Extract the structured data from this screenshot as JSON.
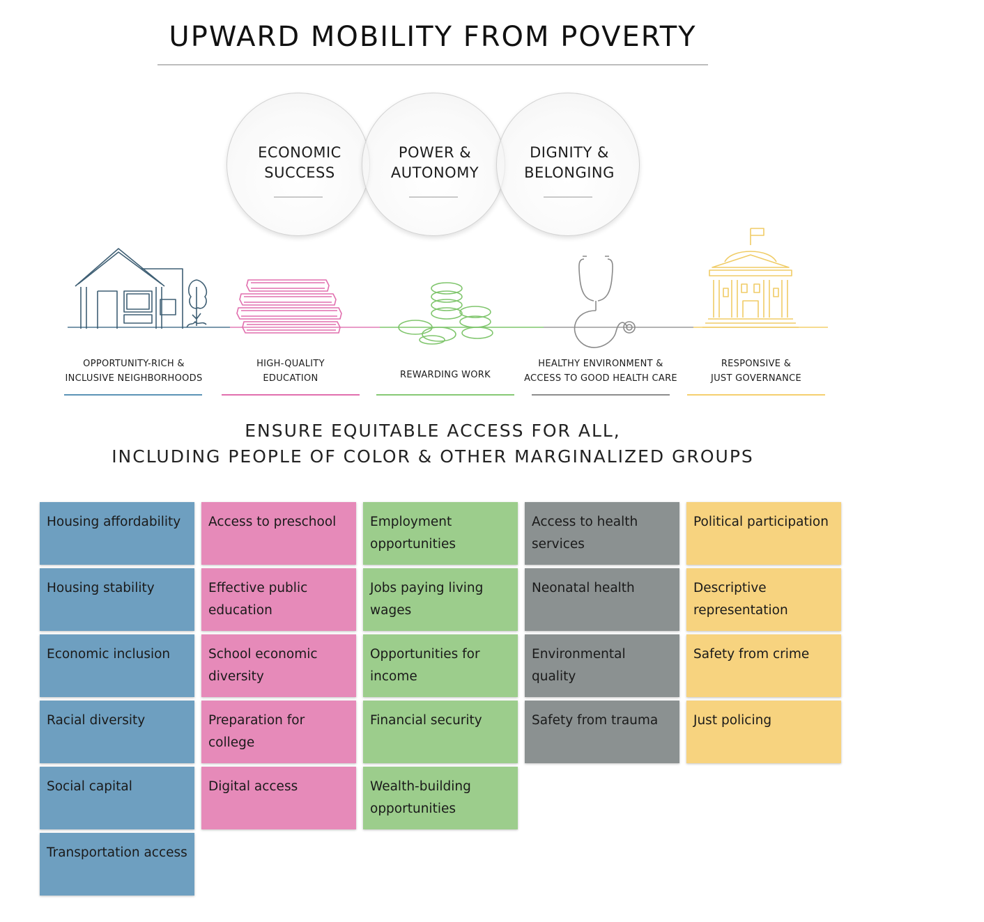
{
  "title": "UPWARD MOBILITY FROM POVERTY",
  "circles": [
    {
      "label": "ECONOMIC SUCCESS"
    },
    {
      "label": "POWER & AUTONOMY"
    },
    {
      "label": "DIGNITY & BELONGING"
    }
  ],
  "pillars": [
    {
      "label_line1": "OPPORTUNITY-RICH &",
      "label_line2": "INCLUSIVE NEIGHBORHOODS",
      "color": "#5b93b6",
      "icon": "house-icon"
    },
    {
      "label_line1": "HIGH-QUALITY",
      "label_line2": "EDUCATION",
      "color": "#e16fae",
      "icon": "books-icon"
    },
    {
      "label_line1": "REWARDING WORK",
      "label_line2": "",
      "color": "#86c874",
      "icon": "coins-icon"
    },
    {
      "label_line1": "HEALTHY ENVIRONMENT &",
      "label_line2": "ACCESS TO GOOD HEALTH CARE",
      "color": "#8c8c8c",
      "icon": "stethoscope-icon"
    },
    {
      "label_line1": "RESPONSIVE &",
      "label_line2": "JUST GOVERNANCE",
      "color": "#f5cf6e",
      "icon": "capitol-icon"
    }
  ],
  "equity_line1": "ENSURE EQUITABLE ACCESS FOR ALL,",
  "equity_line2": "INCLUDING PEOPLE OF COLOR & OTHER MARGINALIZED GROUPS",
  "columns": [
    {
      "color": "#6e9fc0",
      "items": [
        "Housing affordability",
        "Housing stability",
        "Economic inclusion",
        "Racial diversity",
        "Social capital",
        "Transportation access"
      ]
    },
    {
      "color": "#e68ab9",
      "items": [
        "Access to preschool",
        "Effective public education",
        "School economic diversity",
        "Preparation for college",
        "Digital access"
      ]
    },
    {
      "color": "#9ccd8c",
      "items": [
        "Employment opportunities",
        "Jobs paying living wages",
        "Opportunities for income",
        "Financial security",
        "Wealth-building opportunities"
      ]
    },
    {
      "color": "#8b9191",
      "items": [
        "Access to health services",
        "Neonatal health",
        "Environmental quality",
        "Safety from trauma"
      ]
    },
    {
      "color": "#f7d37f",
      "items": [
        "Political participation",
        "Descriptive representation",
        "Safety from crime",
        "Just policing"
      ]
    }
  ]
}
